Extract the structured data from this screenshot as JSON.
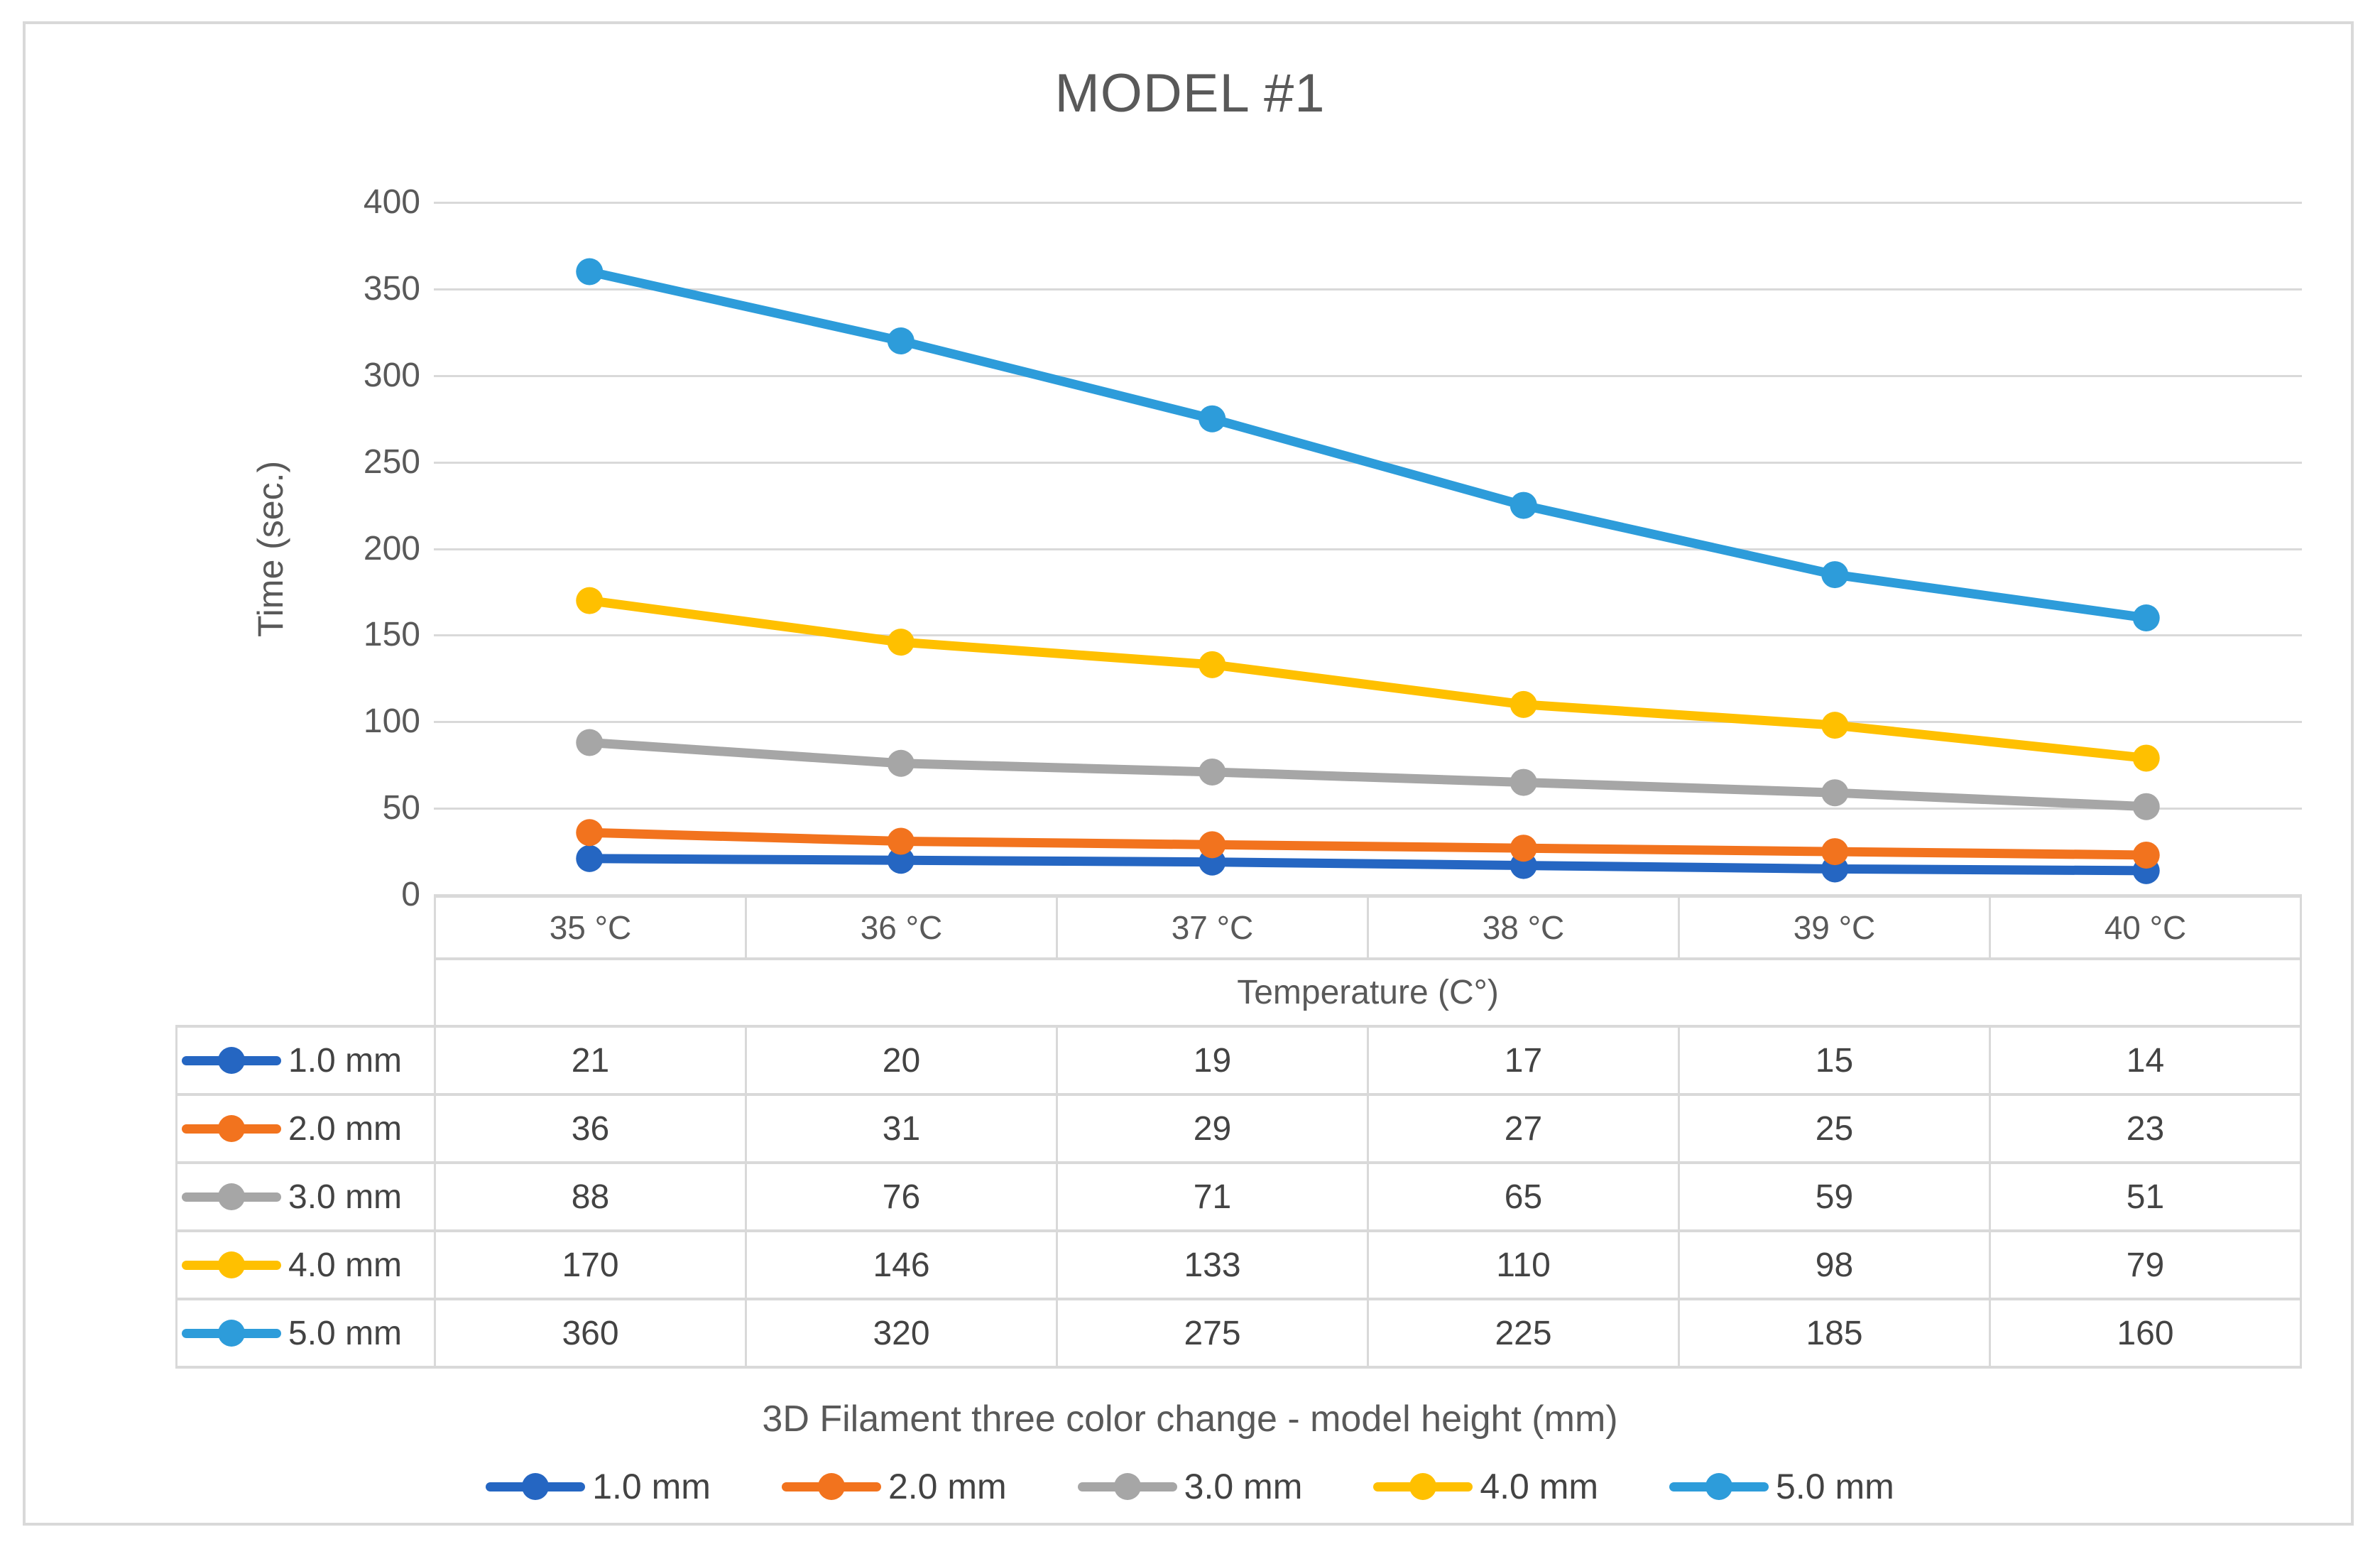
{
  "chart_data": {
    "type": "line",
    "title": "MODEL #1",
    "ylabel": "Time (sec.)",
    "xlabel": "Temperature (C°)",
    "series_axis_title": "3D Filament three color change - model height (mm)",
    "categories": [
      "35 °C",
      "36 °C",
      "37 °C",
      "38 °C",
      "39 °C",
      "40 °C"
    ],
    "series": [
      {
        "name": "1.0 mm",
        "color": "#2566c2",
        "values": [
          21,
          20,
          19,
          17,
          15,
          14
        ]
      },
      {
        "name": "2.0 mm",
        "color": "#f2731e",
        "values": [
          36,
          31,
          29,
          27,
          25,
          23
        ]
      },
      {
        "name": "3.0 mm",
        "color": "#a6a6a6",
        "values": [
          88,
          76,
          71,
          65,
          59,
          51
        ]
      },
      {
        "name": "4.0 mm",
        "color": "#ffc000",
        "values": [
          170,
          146,
          133,
          110,
          98,
          79
        ]
      },
      {
        "name": "5.0 mm",
        "color": "#2d9cda",
        "values": [
          360,
          320,
          275,
          225,
          185,
          160
        ]
      }
    ],
    "ylim": [
      0,
      400
    ],
    "ytick_step": 50,
    "yticks": [
      400,
      350,
      300,
      250,
      200,
      150,
      100,
      50,
      0
    ],
    "grid": "horizontal",
    "legend_position": "bottom",
    "data_table_shown": true
  },
  "colors": {
    "axis_text": "#595959",
    "value_text": "#434343",
    "gridline": "#d9d9d9",
    "table_border": "#d9d9d9",
    "frame_border": "#d9d9d9"
  }
}
